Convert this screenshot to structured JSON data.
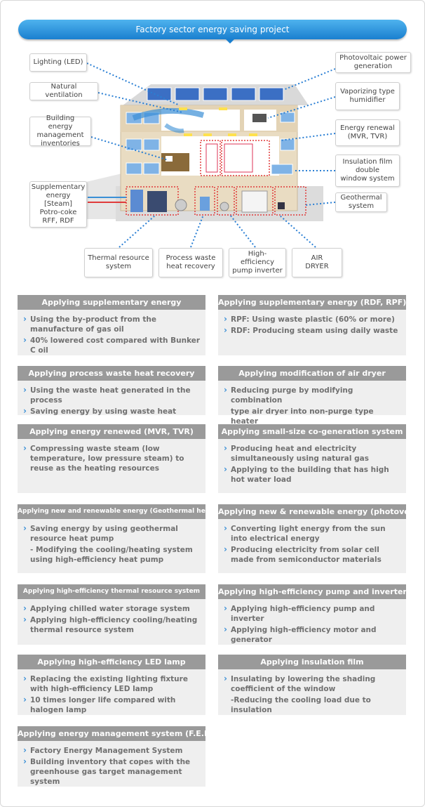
{
  "title": "Factory sector energy saving project",
  "callouts": {
    "lighting": "Lighting (LED)",
    "natural_ventilation": "Natural ventilation",
    "bems": "Building energy\nmanagement\ninventories",
    "supplementary": "Supplementary\nenergy\n[Steam]\nPotro-coke\nRFF, RDF",
    "photovoltaic": "Photovoltaic power\ngeneration",
    "humidifier": "Vaporizing type\nhumidifier",
    "energy_renewal": "Energy renewal\n(MVR, TVR)",
    "insulation": "Insulation film\ndouble\nwindow system",
    "geothermal": "Geothermal\nsystem",
    "thermal_resource": "Thermal resource\nsystem",
    "process_waste_heat": "Process waste\nheat recovery",
    "pump_inverter": "High-efficiency\npump inverter",
    "air_dryer": "AIR\nDRYER"
  },
  "cards": [
    {
      "title": "Applying supplementary energy",
      "items": [
        "Using the by-product from the manufacture of gas oil",
        "40% lowered cost compared with Bunker C oil"
      ]
    },
    {
      "title": "Applying supplementary energy (RDF, RPF)",
      "items": [
        "RPF: Using waste plastic (60% or more)",
        "RDF: Producing steam using daily waste"
      ]
    },
    {
      "title": "Applying process waste heat recovery",
      "items": [
        "Using the waste heat generated in the process",
        "Saving energy by using waste heat"
      ]
    },
    {
      "title": "Applying modification of air dryer",
      "items": [
        "Reducing purge by modifying combination",
        "type air dryer into non-purge type heater"
      ]
    },
    {
      "title": "Applying energy renewed (MVR, TVR)",
      "items": [
        "Compressing waste steam (low temperature, low pressure steam) to reuse as the heating resources"
      ]
    },
    {
      "title": "Applying small-size co-generation system",
      "items": [
        "Producing heat and electricity simultaneously using natural gas",
        "Applying to the building that has high hot water load"
      ]
    },
    {
      "title": "Applying new and renewable energy (Geothermal heat)",
      "items": [
        "Saving energy by using geothermal resource heat pump",
        "- Modifying the cooling/heating system using high-efficiency heat pump"
      ]
    },
    {
      "title": "Applying new & renewable energy (photovoltaic)",
      "items": [
        "Converting light energy from the sun into electrical energy",
        "Producing electricity from solar cell made from semiconductor materials"
      ]
    },
    {
      "title": "Applying high-efficiency thermal resource system",
      "items": [
        "Applying chilled water storage system",
        "Applying high-efficiency cooling/heating thermal resource system"
      ]
    },
    {
      "title": "Applying high-efficiency pump and inverter",
      "items": [
        "Applying high-efficiency pump and inverter",
        "Applying high-efficiency motor and generator"
      ]
    },
    {
      "title": "Applying high-efficiency LED lamp",
      "items": [
        "Replacing the existing lighting fixture with high-efficiency LED lamp",
        "10 times longer life compared with halogen lamp"
      ]
    },
    {
      "title": "Applying insulation film",
      "items": [
        "Insulating by lowering the shading coefficient of the window",
        "-Reducing the cooling load due to insulation"
      ]
    },
    {
      "title": "Applying energy management system (F.E.M.S)",
      "items": [
        "Factory Energy Management System",
        "Building inventory that copes with the greenhouse gas target management system"
      ]
    }
  ]
}
